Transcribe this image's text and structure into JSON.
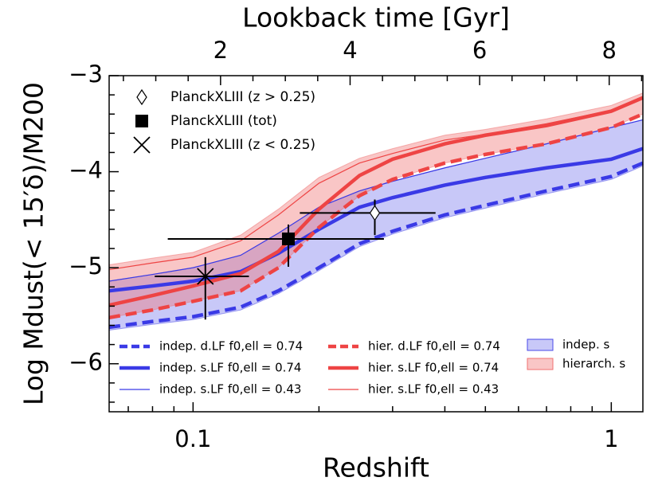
{
  "chart_data": {
    "type": "line",
    "xlabel": "Redshift",
    "ylabel": "Log Mdust(< 15′δ)/M200",
    "x2label": "Lookback time [Gyr]",
    "xscale": "log",
    "xlim": [
      0.063,
      1.19
    ],
    "ylim": [
      -6.5,
      -3
    ],
    "x2lim": [
      0.28,
      8.52
    ],
    "xticks": [
      0.1,
      1
    ],
    "xticks_minor": [
      0.07,
      0.08,
      0.09,
      0.2,
      0.3,
      0.4,
      0.5,
      0.6,
      0.7,
      0.8,
      0.9
    ],
    "yticks": [
      {
        "value": -3,
        "label": "−3"
      },
      {
        "value": -4,
        "label": "−4"
      },
      {
        "value": -5,
        "label": "−5"
      },
      {
        "value": -6,
        "label": "−6"
      }
    ],
    "yticks_minor": [
      -3.2,
      -3.4,
      -3.6,
      -3.8,
      -4.2,
      -4.4,
      -4.6,
      -4.8,
      -5.2,
      -5.4,
      -5.6,
      -5.8,
      -6.2,
      -6.4
    ],
    "x2ticks": [
      2,
      4,
      6,
      8
    ],
    "x2ticks_minor": [
      0.5,
      1,
      1.5,
      2.5,
      3,
      3.5,
      4.5,
      5,
      5.5,
      6.5,
      7,
      7.5,
      8.5
    ],
    "x": [
      0.063,
      0.08,
      0.1,
      0.13,
      0.16,
      0.2,
      0.25,
      0.3,
      0.4,
      0.5,
      0.7,
      1.0,
      1.19
    ],
    "bands": [
      {
        "name": "indep. s",
        "color": "#4a4ae8",
        "opacity": 0.3,
        "lower": [
          -5.65,
          -5.59,
          -5.54,
          -5.44,
          -5.27,
          -5.03,
          -4.78,
          -4.65,
          -4.48,
          -4.38,
          -4.23,
          -4.08,
          -3.94
        ],
        "upper": [
          -5.14,
          -5.07,
          -5.0,
          -4.87,
          -4.64,
          -4.37,
          -4.2,
          -4.1,
          -3.96,
          -3.86,
          -3.71,
          -3.54,
          -3.46
        ]
      },
      {
        "name": "hierarch. s",
        "color": "#f07070",
        "opacity": 0.4,
        "lower": [
          -5.52,
          -5.44,
          -5.35,
          -5.24,
          -5.0,
          -4.58,
          -4.25,
          -4.08,
          -3.91,
          -3.82,
          -3.71,
          -3.54,
          -3.4
        ],
        "upper": [
          -4.97,
          -4.9,
          -4.84,
          -4.66,
          -4.39,
          -4.06,
          -3.86,
          -3.76,
          -3.62,
          -3.56,
          -3.45,
          -3.31,
          -3.18
        ]
      }
    ],
    "series": [
      {
        "name": "indep. d.LF f0,ell = 0.74",
        "color": "#3a3ae6",
        "style": "dashed",
        "width": 4.5,
        "values": [
          -5.62,
          -5.56,
          -5.51,
          -5.41,
          -5.24,
          -5.0,
          -4.75,
          -4.62,
          -4.45,
          -4.35,
          -4.2,
          -4.05,
          -3.91
        ]
      },
      {
        "name": "indep. s.LF f0,ell = 0.74",
        "color": "#3a3ae6",
        "style": "solid",
        "width": 4.5,
        "values": [
          -5.24,
          -5.19,
          -5.14,
          -5.04,
          -4.85,
          -4.6,
          -4.37,
          -4.27,
          -4.14,
          -4.06,
          -3.96,
          -3.87,
          -3.76
        ]
      },
      {
        "name": "indep. s.LF f0,ell = 0.43",
        "color": "#3a3ae6",
        "style": "solid",
        "width": 1.2,
        "values": [
          -5.14,
          -5.07,
          -5.0,
          -4.87,
          -4.64,
          -4.37,
          -4.2,
          -4.1,
          -3.96,
          -3.86,
          -3.71,
          -3.54,
          -3.46
        ]
      },
      {
        "name": "hier. d.LF  f0,ell = 0.74",
        "color": "#ee4444",
        "style": "dashed",
        "width": 4.5,
        "values": [
          -5.52,
          -5.44,
          -5.35,
          -5.24,
          -5.0,
          -4.58,
          -4.25,
          -4.08,
          -3.91,
          -3.82,
          -3.71,
          -3.54,
          -3.4
        ]
      },
      {
        "name": "hier. s.LF f0,ell = 0.74",
        "color": "#ee4444",
        "style": "solid",
        "width": 4.5,
        "values": [
          -5.39,
          -5.29,
          -5.19,
          -5.06,
          -4.83,
          -4.39,
          -4.04,
          -3.87,
          -3.71,
          -3.62,
          -3.52,
          -3.37,
          -3.23
        ]
      },
      {
        "name": "hier. s.LF  f0,ell = 0.43",
        "color": "#ee4444",
        "style": "solid",
        "width": 1.2,
        "values": [
          -5.02,
          -4.95,
          -4.89,
          -4.72,
          -4.45,
          -4.12,
          -3.91,
          -3.81,
          -3.67,
          -3.61,
          -3.5,
          -3.36,
          -3.22
        ]
      }
    ],
    "points": [
      {
        "name": "PlanckXLIII (z > 0.25)",
        "marker": "diamond",
        "x": 0.272,
        "y": -4.43,
        "xerr": [
          0.092,
          0.108
        ],
        "yerr": [
          0.23,
          0.14
        ]
      },
      {
        "name": "PlanckXLIII (tot)",
        "marker": "square",
        "x": 0.169,
        "y": -4.7,
        "xerr": [
          0.082,
          0.117
        ],
        "yerr": [
          0.29,
          0.15
        ]
      },
      {
        "name": "PlanckXLIII (z < 0.25)",
        "marker": "cross",
        "x": 0.107,
        "y": -5.09,
        "xerr": [
          0.026,
          0.029
        ],
        "yerr": [
          0.45,
          0.2
        ]
      }
    ]
  }
}
